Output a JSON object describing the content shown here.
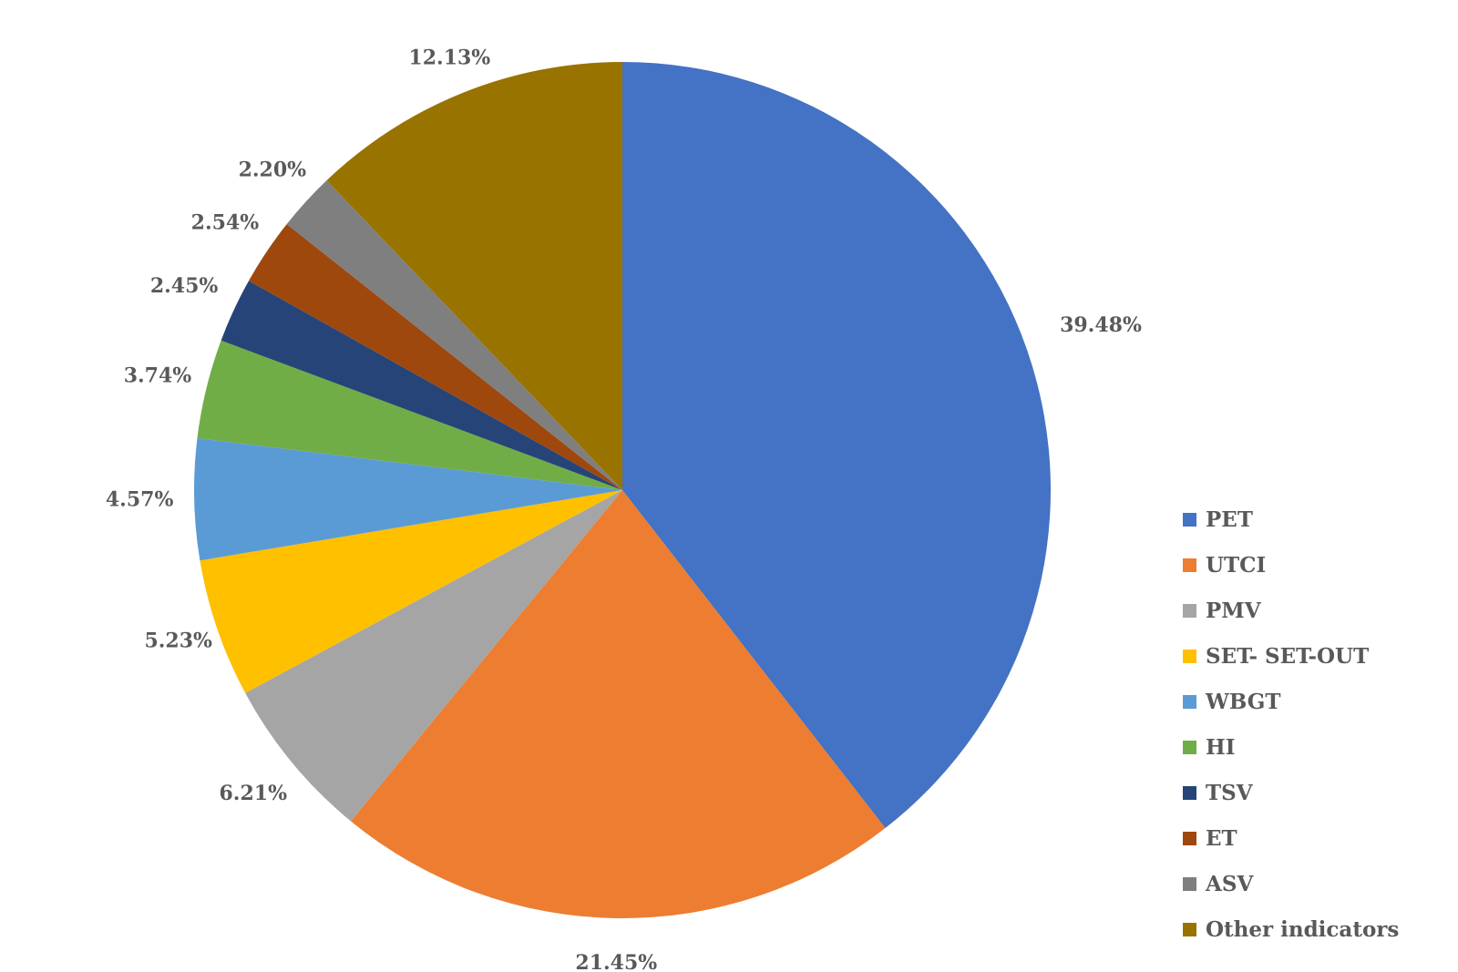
{
  "chart_data": {
    "type": "pie",
    "title": "",
    "start_angle_deg": 0,
    "direction": "clockwise",
    "legend_position": "right",
    "slices": [
      {
        "name": "PET",
        "value": 39.48,
        "label": "39.48%",
        "color": "#4472C4"
      },
      {
        "name": "UTCI",
        "value": 21.45,
        "label": "21.45%",
        "color": "#ED7D31"
      },
      {
        "name": "PMV",
        "value": 6.21,
        "label": "6.21%",
        "color": "#A5A5A5"
      },
      {
        "name": "SET- SET-OUT",
        "value": 5.23,
        "label": "5.23%",
        "color": "#FFC000"
      },
      {
        "name": "WBGT",
        "value": 4.57,
        "label": "4.57%",
        "color": "#5B9BD5"
      },
      {
        "name": "HI",
        "value": 3.74,
        "label": "3.74%",
        "color": "#70AD47"
      },
      {
        "name": "TSV",
        "value": 2.45,
        "label": "2.45%",
        "color": "#264478"
      },
      {
        "name": "ET",
        "value": 2.54,
        "label": "2.54%",
        "color": "#9E480E"
      },
      {
        "name": "ASV",
        "value": 2.2,
        "label": "2.20%",
        "color": "#7F7F7F"
      },
      {
        "name": "Other indicators",
        "value": 12.13,
        "label": "12.13%",
        "color": "#997300"
      }
    ]
  }
}
